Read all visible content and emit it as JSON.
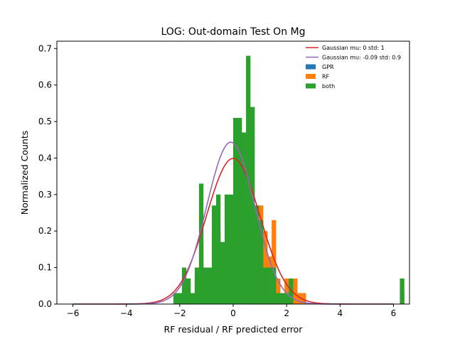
{
  "chart_data": {
    "type": "bar",
    "title": "LOG: Out-domain Test On Mg",
    "xlabel": "RF residual / RF predicted error",
    "ylabel": "Normalized Counts",
    "xlim": [
      -6.6,
      6.6
    ],
    "ylim": [
      0,
      0.72
    ],
    "xticks": [
      -6,
      -4,
      -2,
      0,
      2,
      4,
      6
    ],
    "xtick_labels": [
      "−6",
      "−4",
      "−2",
      "0",
      "2",
      "4",
      "6"
    ],
    "yticks": [
      0.0,
      0.1,
      0.2,
      0.3,
      0.4,
      0.5,
      0.6,
      0.7
    ],
    "ytick_labels": [
      "0.0",
      "0.1",
      "0.2",
      "0.3",
      "0.4",
      "0.5",
      "0.6",
      "0.7"
    ],
    "legend_position": "top-right",
    "grid": false,
    "bin_width": 0.16,
    "bin_start": -2.4,
    "series": [
      {
        "name": "GPR",
        "kind": "hist",
        "color": "#1f77b4",
        "values": [
          0,
          0,
          0,
          0,
          0,
          0,
          0,
          0,
          0,
          0,
          0,
          0.03,
          0,
          0,
          0,
          0,
          0,
          0,
          0.1,
          0.03,
          0.17,
          0.13,
          0.13,
          0,
          0,
          0,
          0,
          0,
          0,
          0,
          0,
          0,
          0,
          0,
          0,
          0,
          0,
          0,
          0,
          0,
          0,
          0,
          0,
          0,
          0,
          0,
          0,
          0,
          0,
          0,
          0,
          0,
          0,
          0,
          0
        ]
      },
      {
        "name": "RF",
        "kind": "hist",
        "color": "#ff7f0e",
        "values": [
          0,
          0,
          0.03,
          0.03,
          0.07,
          0.03,
          0.07,
          0.17,
          0.03,
          0.07,
          0.1,
          0.2,
          0.1,
          0.07,
          0.17,
          0.23,
          0.07,
          0.1,
          0.27,
          0.2,
          0.23,
          0.27,
          0.2,
          0.13,
          0.23,
          0.07,
          0.03,
          0.07,
          0.03,
          0.07,
          0.03,
          0.03,
          0,
          0,
          0,
          0,
          0,
          0,
          0,
          0,
          0,
          0,
          0,
          0,
          0,
          0,
          0,
          0,
          0,
          0,
          0,
          0,
          0,
          0,
          0.03
        ]
      },
      {
        "name": "both",
        "kind": "hist",
        "color": "#2ca02c",
        "values": [
          0,
          0.03,
          0.03,
          0.1,
          0.07,
          0.03,
          0.1,
          0.33,
          0.1,
          0.1,
          0.27,
          0.3,
          0.17,
          0.3,
          0.3,
          0.51,
          0.51,
          0.47,
          0.68,
          0.54,
          0.27,
          0.23,
          0.1,
          0.1,
          0.1,
          0.03,
          0.03,
          0.03,
          0.07,
          0,
          0,
          0,
          0,
          0,
          0,
          0,
          0,
          0,
          0,
          0,
          0,
          0,
          0,
          0,
          0,
          0,
          0,
          0,
          0,
          0,
          0,
          0,
          0,
          0,
          0.07
        ]
      },
      {
        "name": "Gaussian mu: 0 std: 1",
        "kind": "gaussian",
        "color": "#d62728",
        "mu": 0,
        "std": 1,
        "x_range": [
          -6,
          6
        ]
      },
      {
        "name": "Gaussian mu: -0.09 std: 0.9",
        "kind": "gaussian",
        "color": "#9467bd",
        "mu": -0.09,
        "std": 0.9,
        "x_range": [
          -6,
          6
        ]
      }
    ],
    "legend_order": [
      "Gaussian mu: 0 std: 1",
      "Gaussian mu: -0.09 std: 0.9",
      "GPR",
      "RF",
      "both"
    ]
  }
}
